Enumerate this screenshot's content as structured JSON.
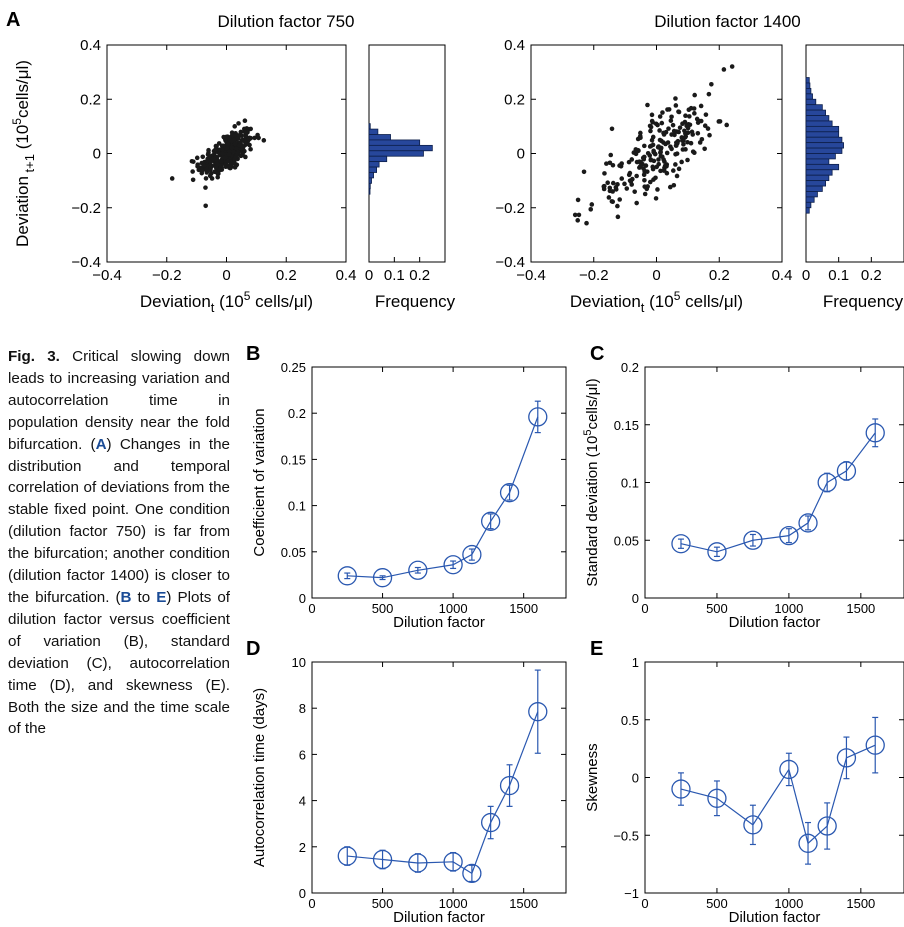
{
  "figure": {
    "panel_labels": {
      "A": "A",
      "B": "B",
      "C": "C",
      "D": "D",
      "E": "E"
    },
    "caption": {
      "fig_label": "Fig. 3.",
      "parts": [
        {
          "t": " Critical slowing down leads to increasing variation and autocorrelation time in population density near the fold bifurcation. (",
          "s": ""
        },
        {
          "t": "A",
          "s": "hl"
        },
        {
          "t": ") Changes in the distribution and temporal correlation of deviations from the stable fixed point. One condition (dilution factor 750) is far from the bifurcation; another condition (dilution factor 1400) is closer to the bifurcation. (",
          "s": ""
        },
        {
          "t": "B",
          "s": "hl"
        },
        {
          "t": " to ",
          "s": ""
        },
        {
          "t": "E",
          "s": "hl"
        },
        {
          "t": ") Plots of dilution factor versus coefficient of variation (B), standard deviation (C), autocorrelation time (D), and skewness (E). Both the size and the time scale of the",
          "s": ""
        }
      ]
    }
  },
  "colors": {
    "line": "#2a58b0",
    "bar_fill": "#27479b",
    "bar_edge": "#0d1f4a",
    "dot": "#1a1a1a"
  },
  "chart_data": [
    {
      "id": "A1",
      "type": "scatter",
      "title": "Dilution factor 750",
      "xlabel": "Deviation_t (10^5 cells/μl)",
      "ylabel": "Deviation_t+1 (10^5 cells/μl)",
      "xlim": [
        -0.4,
        0.4
      ],
      "ylim": [
        -0.4,
        0.4
      ],
      "xticks": [
        "−0.4",
        "−0.2",
        "0",
        "0.2",
        "0.4"
      ],
      "yticks": [
        "0.4",
        "0.2",
        "0",
        "−0.2",
        "−0.4"
      ],
      "approx_points": {
        "count": 300,
        "mean": 0.0,
        "sd": 0.045,
        "corr": 0.6
      },
      "histogram": {
        "xlabel": "Frequency",
        "xlim": [
          0,
          0.3
        ],
        "xticks": [
          "0",
          "0.1",
          "0.2"
        ],
        "bin_centers": [
          0.1,
          0.08,
          0.06,
          0.04,
          0.02,
          0.0,
          -0.02,
          -0.04,
          -0.06,
          -0.08,
          -0.1,
          -0.12,
          -0.14
        ],
        "frequencies": [
          0.005,
          0.035,
          0.085,
          0.2,
          0.25,
          0.215,
          0.07,
          0.04,
          0.03,
          0.018,
          0.01,
          0.005,
          0.004
        ]
      }
    },
    {
      "id": "A2",
      "type": "scatter",
      "title": "Dilution factor 1400",
      "xlabel": "Deviation_t (10^5 cells/μl)",
      "xlim": [
        -0.4,
        0.4
      ],
      "ylim": [
        -0.4,
        0.4
      ],
      "xticks": [
        "−0.4",
        "−0.2",
        "0",
        "0.2",
        "0.4"
      ],
      "yticks": [
        "0.4",
        "0.2",
        "0",
        "−0.2",
        "−0.4"
      ],
      "approx_points": {
        "count": 230,
        "mean": 0.0,
        "sd": 0.11,
        "corr": 0.8
      },
      "histogram": {
        "xlabel": "Frequency",
        "xlim": [
          0,
          0.3
        ],
        "xticks": [
          "0",
          "0.1",
          "0.2"
        ],
        "bin_centers": [
          0.27,
          0.25,
          0.23,
          0.21,
          0.19,
          0.17,
          0.15,
          0.13,
          0.11,
          0.09,
          0.07,
          0.05,
          0.03,
          0.01,
          -0.01,
          -0.03,
          -0.05,
          -0.07,
          -0.09,
          -0.11,
          -0.13,
          -0.15,
          -0.17,
          -0.19,
          -0.21
        ],
        "frequencies": [
          0.01,
          0.012,
          0.015,
          0.02,
          0.03,
          0.05,
          0.06,
          0.07,
          0.08,
          0.1,
          0.1,
          0.11,
          0.115,
          0.11,
          0.09,
          0.07,
          0.1,
          0.08,
          0.07,
          0.06,
          0.05,
          0.035,
          0.025,
          0.015,
          0.01
        ]
      }
    },
    {
      "id": "B",
      "type": "line",
      "xlabel": "Dilution factor",
      "ylabel": "Coefficient of variation",
      "xlim": [
        0,
        1800
      ],
      "ylim": [
        0,
        0.25
      ],
      "xticks": [
        "0",
        "500",
        "1000",
        "1500"
      ],
      "yticks": [
        "0",
        "0.05",
        "0.1",
        "0.15",
        "0.2",
        "0.25"
      ],
      "x": [
        250,
        500,
        750,
        1000,
        1133,
        1266,
        1400,
        1600
      ],
      "y": [
        0.024,
        0.022,
        0.03,
        0.036,
        0.047,
        0.083,
        0.114,
        0.196
      ],
      "err": [
        0.003,
        0.002,
        0.003,
        0.004,
        0.006,
        0.008,
        0.008,
        0.017
      ]
    },
    {
      "id": "C",
      "type": "line",
      "xlabel": "Dilution factor",
      "ylabel": "Standard deviation (10^5cells/μl)",
      "xlim": [
        0,
        1800
      ],
      "ylim": [
        0,
        0.2
      ],
      "xticks": [
        "0",
        "500",
        "1000",
        "1500"
      ],
      "yticks": [
        "0",
        "0.05",
        "0.1",
        "0.15",
        "0.2"
      ],
      "x": [
        250,
        500,
        750,
        1000,
        1133,
        1266,
        1400,
        1600
      ],
      "y": [
        0.047,
        0.04,
        0.05,
        0.054,
        0.065,
        0.1,
        0.11,
        0.143
      ],
      "err": [
        0.004,
        0.004,
        0.005,
        0.006,
        0.006,
        0.008,
        0.008,
        0.012
      ]
    },
    {
      "id": "D",
      "type": "line",
      "xlabel": "Dilution factor",
      "ylabel": "Autocorrelation time (days)",
      "xlim": [
        0,
        1800
      ],
      "ylim": [
        0,
        10
      ],
      "xticks": [
        "0",
        "500",
        "1000",
        "1500"
      ],
      "yticks": [
        "0",
        "2",
        "4",
        "6",
        "8",
        "10"
      ],
      "x": [
        250,
        500,
        750,
        1000,
        1133,
        1266,
        1400,
        1600
      ],
      "y": [
        1.6,
        1.45,
        1.3,
        1.35,
        0.85,
        3.05,
        4.65,
        7.85
      ],
      "err": [
        0.4,
        0.4,
        0.4,
        0.4,
        0.35,
        0.7,
        0.9,
        1.8
      ]
    },
    {
      "id": "E",
      "type": "line",
      "xlabel": "Dilution factor",
      "ylabel": "Skewness",
      "xlim": [
        0,
        1800
      ],
      "ylim": [
        -1,
        1
      ],
      "xticks": [
        "0",
        "500",
        "1000",
        "1500"
      ],
      "yticks": [
        "1",
        "0.5",
        "0",
        "−0.5",
        "−1"
      ],
      "x": [
        250,
        500,
        750,
        1000,
        1133,
        1266,
        1400,
        1600
      ],
      "y": [
        -0.1,
        -0.18,
        -0.41,
        0.07,
        -0.57,
        -0.42,
        0.17,
        0.28
      ],
      "err": [
        0.14,
        0.15,
        0.17,
        0.14,
        0.18,
        0.2,
        0.18,
        0.24
      ]
    }
  ]
}
